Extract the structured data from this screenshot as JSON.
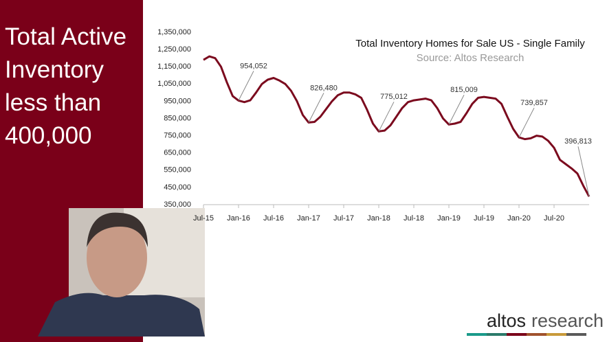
{
  "sidebar": {
    "lines": [
      "Total Active",
      "Inventory",
      "less than",
      "400,000"
    ]
  },
  "logo": {
    "brand": "altos",
    "suffix": "research"
  },
  "chart_data": {
    "type": "line",
    "title": "Total Inventory Homes for Sale US - Single Family",
    "subtitle": "Source: Altos Research",
    "x": [
      "2015-07",
      "2015-08",
      "2015-09",
      "2015-10",
      "2015-11",
      "2015-12",
      "2016-01",
      "2016-02",
      "2016-03",
      "2016-04",
      "2016-05",
      "2016-06",
      "2016-07",
      "2016-08",
      "2016-09",
      "2016-10",
      "2016-11",
      "2016-12",
      "2017-01",
      "2017-02",
      "2017-03",
      "2017-04",
      "2017-05",
      "2017-06",
      "2017-07",
      "2017-08",
      "2017-09",
      "2017-10",
      "2017-11",
      "2017-12",
      "2018-01",
      "2018-02",
      "2018-03",
      "2018-04",
      "2018-05",
      "2018-06",
      "2018-07",
      "2018-08",
      "2018-09",
      "2018-10",
      "2018-11",
      "2018-12",
      "2019-01",
      "2019-02",
      "2019-03",
      "2019-04",
      "2019-05",
      "2019-06",
      "2019-07",
      "2019-08",
      "2019-09",
      "2019-10",
      "2019-11",
      "2019-12",
      "2020-01",
      "2020-02",
      "2020-03",
      "2020-04",
      "2020-05",
      "2020-06",
      "2020-07",
      "2020-08",
      "2020-09",
      "2020-10",
      "2020-11",
      "2020-12",
      "2021-01"
    ],
    "series": [
      {
        "name": "Single Family",
        "color": "#7b0a1e",
        "values": [
          1190000,
          1210000,
          1200000,
          1150000,
          1060000,
          980000,
          954052,
          945000,
          955000,
          1000000,
          1050000,
          1075000,
          1085000,
          1070000,
          1050000,
          1010000,
          950000,
          870000,
          826480,
          830000,
          860000,
          905000,
          950000,
          985000,
          1000000,
          1000000,
          990000,
          970000,
          900000,
          820000,
          775012,
          780000,
          810000,
          860000,
          910000,
          945000,
          955000,
          960000,
          965000,
          955000,
          910000,
          850000,
          815009,
          820000,
          830000,
          880000,
          935000,
          970000,
          975000,
          970000,
          965000,
          935000,
          860000,
          790000,
          739857,
          730000,
          735000,
          750000,
          745000,
          720000,
          680000,
          610000,
          585000,
          560000,
          530000,
          460000,
          396813
        ]
      }
    ],
    "xlim": [
      "2015-07",
      "2021-01"
    ],
    "xticks": [
      {
        "value": "2015-07",
        "label": "Jul-15"
      },
      {
        "value": "2016-01",
        "label": "Jan-16"
      },
      {
        "value": "2016-07",
        "label": "Jul-16"
      },
      {
        "value": "2017-01",
        "label": "Jan-17"
      },
      {
        "value": "2017-07",
        "label": "Jul-17"
      },
      {
        "value": "2018-01",
        "label": "Jan-18"
      },
      {
        "value": "2018-07",
        "label": "Jul-18"
      },
      {
        "value": "2019-01",
        "label": "Jan-19"
      },
      {
        "value": "2019-07",
        "label": "Jul-19"
      },
      {
        "value": "2020-01",
        "label": "Jan-20"
      },
      {
        "value": "2020-07",
        "label": "Jul-20"
      }
    ],
    "ylim": [
      350000,
      1350000
    ],
    "yticks": [
      {
        "value": 350000,
        "label": "350,000"
      },
      {
        "value": 450000,
        "label": "450,000"
      },
      {
        "value": 550000,
        "label": "550,000"
      },
      {
        "value": 650000,
        "label": "650,000"
      },
      {
        "value": 750000,
        "label": "750,000"
      },
      {
        "value": 850000,
        "label": "850,000"
      },
      {
        "value": 950000,
        "label": "950,000"
      },
      {
        "value": 1050000,
        "label": "1,050,000"
      },
      {
        "value": 1150000,
        "label": "1,150,000"
      },
      {
        "value": 1250000,
        "label": "1,250,000"
      },
      {
        "value": 1350000,
        "label": "1,350,000"
      }
    ],
    "grid": false,
    "annotations": [
      {
        "x": "2016-01",
        "value": 954052,
        "label": "954,052",
        "color": "#333333"
      },
      {
        "x": "2017-01",
        "value": 826480,
        "label": "826,480",
        "color": "#333333"
      },
      {
        "x": "2018-01",
        "value": 775012,
        "label": "775,012",
        "color": "#333333"
      },
      {
        "x": "2019-01",
        "value": 815009,
        "label": "815,009",
        "color": "#c00000"
      },
      {
        "x": "2020-01",
        "value": 739857,
        "label": "739,857",
        "color": "#333333"
      },
      {
        "x": "2021-01",
        "value": 396813,
        "label": "396,813",
        "color": "#333333"
      }
    ]
  }
}
